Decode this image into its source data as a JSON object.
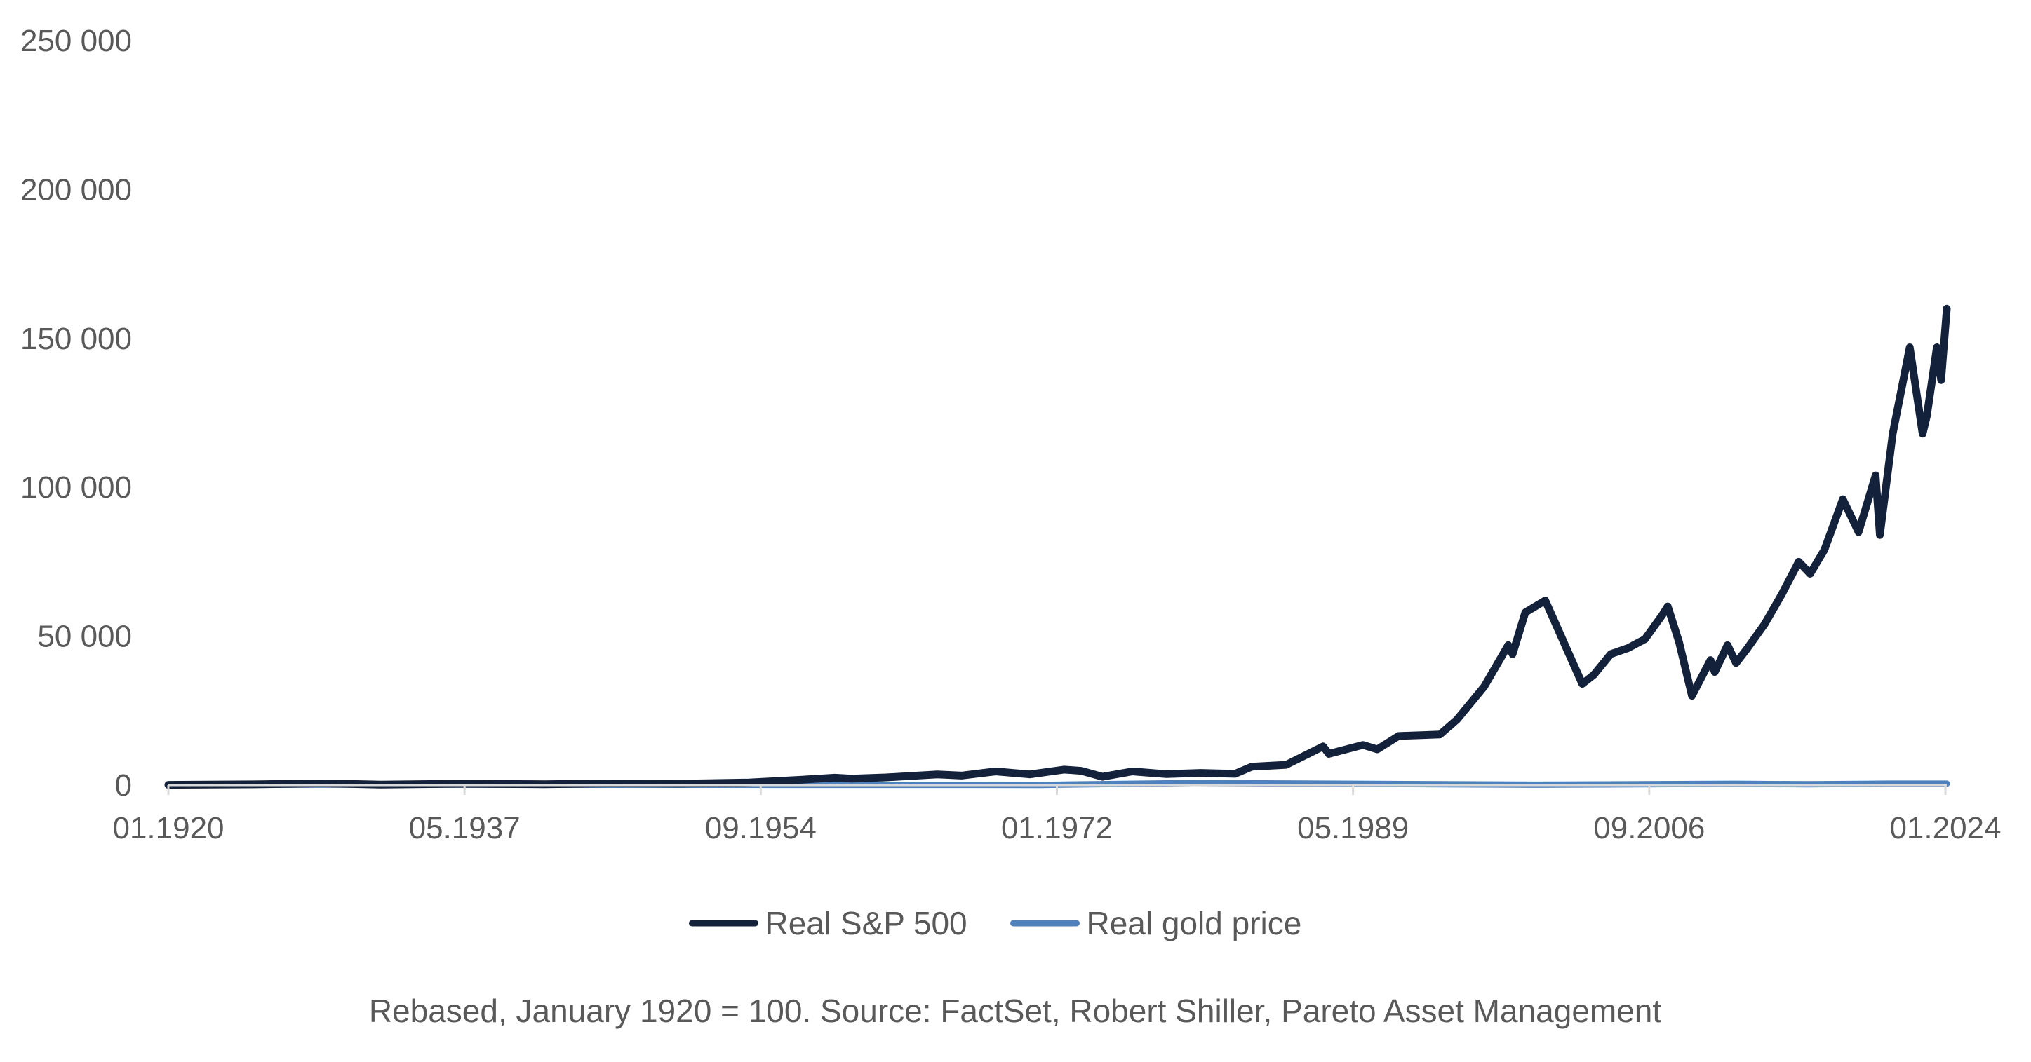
{
  "chart_data": {
    "type": "line",
    "title": "",
    "xlabel": "",
    "ylabel": "",
    "x_range": [
      "1920-01",
      "2024-02"
    ],
    "ylim": [
      0,
      250000
    ],
    "y_ticks": [
      {
        "value": 0,
        "label": "0"
      },
      {
        "value": 50000,
        "label": "50 000"
      },
      {
        "value": 100000,
        "label": "100 000"
      },
      {
        "value": 150000,
        "label": "150 000"
      },
      {
        "value": 200000,
        "label": "200 000"
      },
      {
        "value": 250000,
        "label": "250 000"
      }
    ],
    "x_ticks": [
      {
        "value": "1920-01",
        "label": "01.1920"
      },
      {
        "value": "1937-05",
        "label": "05.1937"
      },
      {
        "value": "1954-09",
        "label": "09.1954"
      },
      {
        "value": "1972-01",
        "label": "01.1972"
      },
      {
        "value": "1989-05",
        "label": "05.1989"
      },
      {
        "value": "2006-09",
        "label": "09.2006"
      },
      {
        "value": "2024-01",
        "label": "01.2024"
      }
    ],
    "grid": false,
    "legend_position": "bottom",
    "series": [
      {
        "name": "Real S&P 500",
        "color": "#14213a",
        "points": [
          [
            "1920-01",
            100
          ],
          [
            "1925-01",
            250
          ],
          [
            "1929-01",
            600
          ],
          [
            "1932-06",
            200
          ],
          [
            "1937-01",
            450
          ],
          [
            "1942-01",
            300
          ],
          [
            "1946-01",
            600
          ],
          [
            "1950-01",
            500
          ],
          [
            "1954-01",
            900
          ],
          [
            "1957-01",
            1800
          ],
          [
            "1959-01",
            2500
          ],
          [
            "1960-01",
            2200
          ],
          [
            "1962-01",
            2600
          ],
          [
            "1965-01",
            3600
          ],
          [
            "1966-06",
            3200
          ],
          [
            "1968-06",
            4600
          ],
          [
            "1970-06",
            3600
          ],
          [
            "1972-06",
            5200
          ],
          [
            "1973-06",
            4800
          ],
          [
            "1974-09",
            2800
          ],
          [
            "1976-06",
            4600
          ],
          [
            "1978-06",
            3700
          ],
          [
            "1980-06",
            4100
          ],
          [
            "1982-06",
            3800
          ],
          [
            "1983-06",
            6200
          ],
          [
            "1985-06",
            6800
          ],
          [
            "1987-08",
            13000
          ],
          [
            "1987-12",
            10500
          ],
          [
            "1989-12",
            13500
          ],
          [
            "1990-10",
            12000
          ],
          [
            "1992-01",
            16500
          ],
          [
            "1994-06",
            17000
          ],
          [
            "1995-06",
            22000
          ],
          [
            "1997-01",
            33000
          ],
          [
            "1998-06",
            47000
          ],
          [
            "1998-09",
            44000
          ],
          [
            "1999-06",
            58000
          ],
          [
            "2000-08",
            62000
          ],
          [
            "2001-09",
            48000
          ],
          [
            "2002-10",
            34000
          ],
          [
            "2003-06",
            37000
          ],
          [
            "2004-06",
            44000
          ],
          [
            "2005-06",
            46000
          ],
          [
            "2006-06",
            49000
          ],
          [
            "2007-06",
            57000
          ],
          [
            "2007-10",
            60000
          ],
          [
            "2008-06",
            48000
          ],
          [
            "2009-03",
            30000
          ],
          [
            "2010-04",
            42000
          ],
          [
            "2010-07",
            38000
          ],
          [
            "2011-04",
            47000
          ],
          [
            "2011-10",
            41000
          ],
          [
            "2012-06",
            46000
          ],
          [
            "2013-06",
            54000
          ],
          [
            "2014-06",
            64000
          ],
          [
            "2015-06",
            75000
          ],
          [
            "2016-02",
            71000
          ],
          [
            "2016-12",
            79000
          ],
          [
            "2018-01",
            96000
          ],
          [
            "2018-12",
            85000
          ],
          [
            "2019-12",
            104000
          ],
          [
            "2020-03",
            84000
          ],
          [
            "2020-12",
            118000
          ],
          [
            "2021-12",
            147000
          ],
          [
            "2022-09",
            118000
          ],
          [
            "2022-12",
            124000
          ],
          [
            "2023-07",
            147000
          ],
          [
            "2023-10",
            136000
          ],
          [
            "2024-02",
            160000
          ]
        ]
      },
      {
        "name": "Real gold price",
        "color": "#4f81bd",
        "points": [
          [
            "1920-01",
            100
          ],
          [
            "1934-01",
            180
          ],
          [
            "1950-01",
            120
          ],
          [
            "1971-01",
            80
          ],
          [
            "1980-01",
            700
          ],
          [
            "2000-01",
            150
          ],
          [
            "2011-09",
            450
          ],
          [
            "2015-12",
            280
          ],
          [
            "2020-08",
            500
          ],
          [
            "2024-02",
            500
          ]
        ]
      }
    ]
  },
  "footnote": "Rebased, January 1920 = 100. Source: FactSet, Robert Shiller, Pareto Asset Management"
}
